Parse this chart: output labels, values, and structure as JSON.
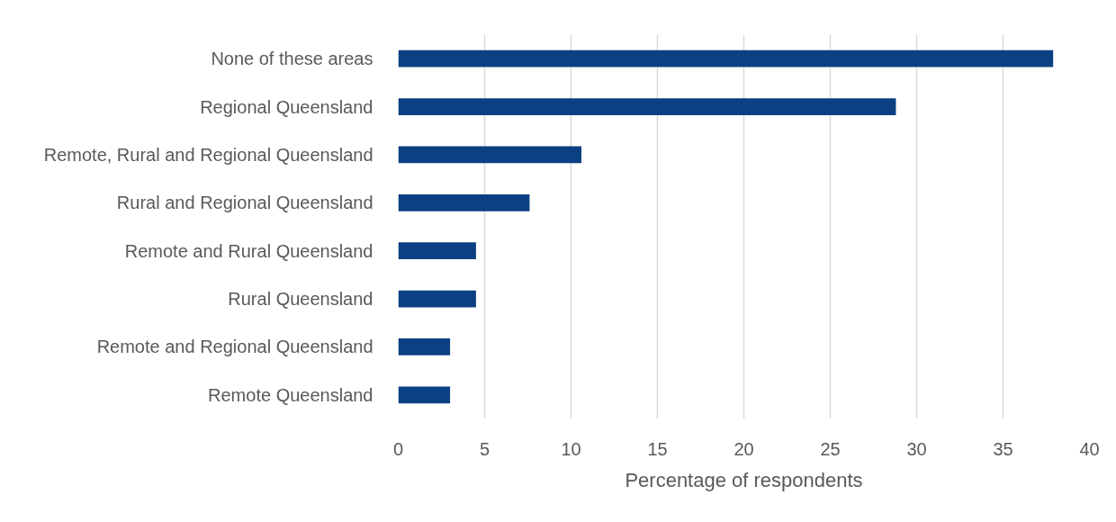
{
  "chart_data": {
    "type": "bar",
    "orientation": "horizontal",
    "xlabel": "Percentage of respondents",
    "categories": [
      "None of these areas",
      "Regional Queensland",
      "Remote, Rural and Regional Queensland",
      "Rural and Regional Queensland",
      "Remote and Rural Queensland",
      "Rural Queensland",
      "Remote and Regional Queensland",
      "Remote Queensland"
    ],
    "values": [
      37.9,
      28.8,
      10.6,
      7.6,
      4.5,
      4.5,
      3.0,
      3.0
    ],
    "color": "#0b4182",
    "xlim": [
      0,
      40
    ],
    "xticks": [
      0,
      5,
      10,
      15,
      20,
      25,
      30,
      35,
      40
    ],
    "grid": "x"
  }
}
